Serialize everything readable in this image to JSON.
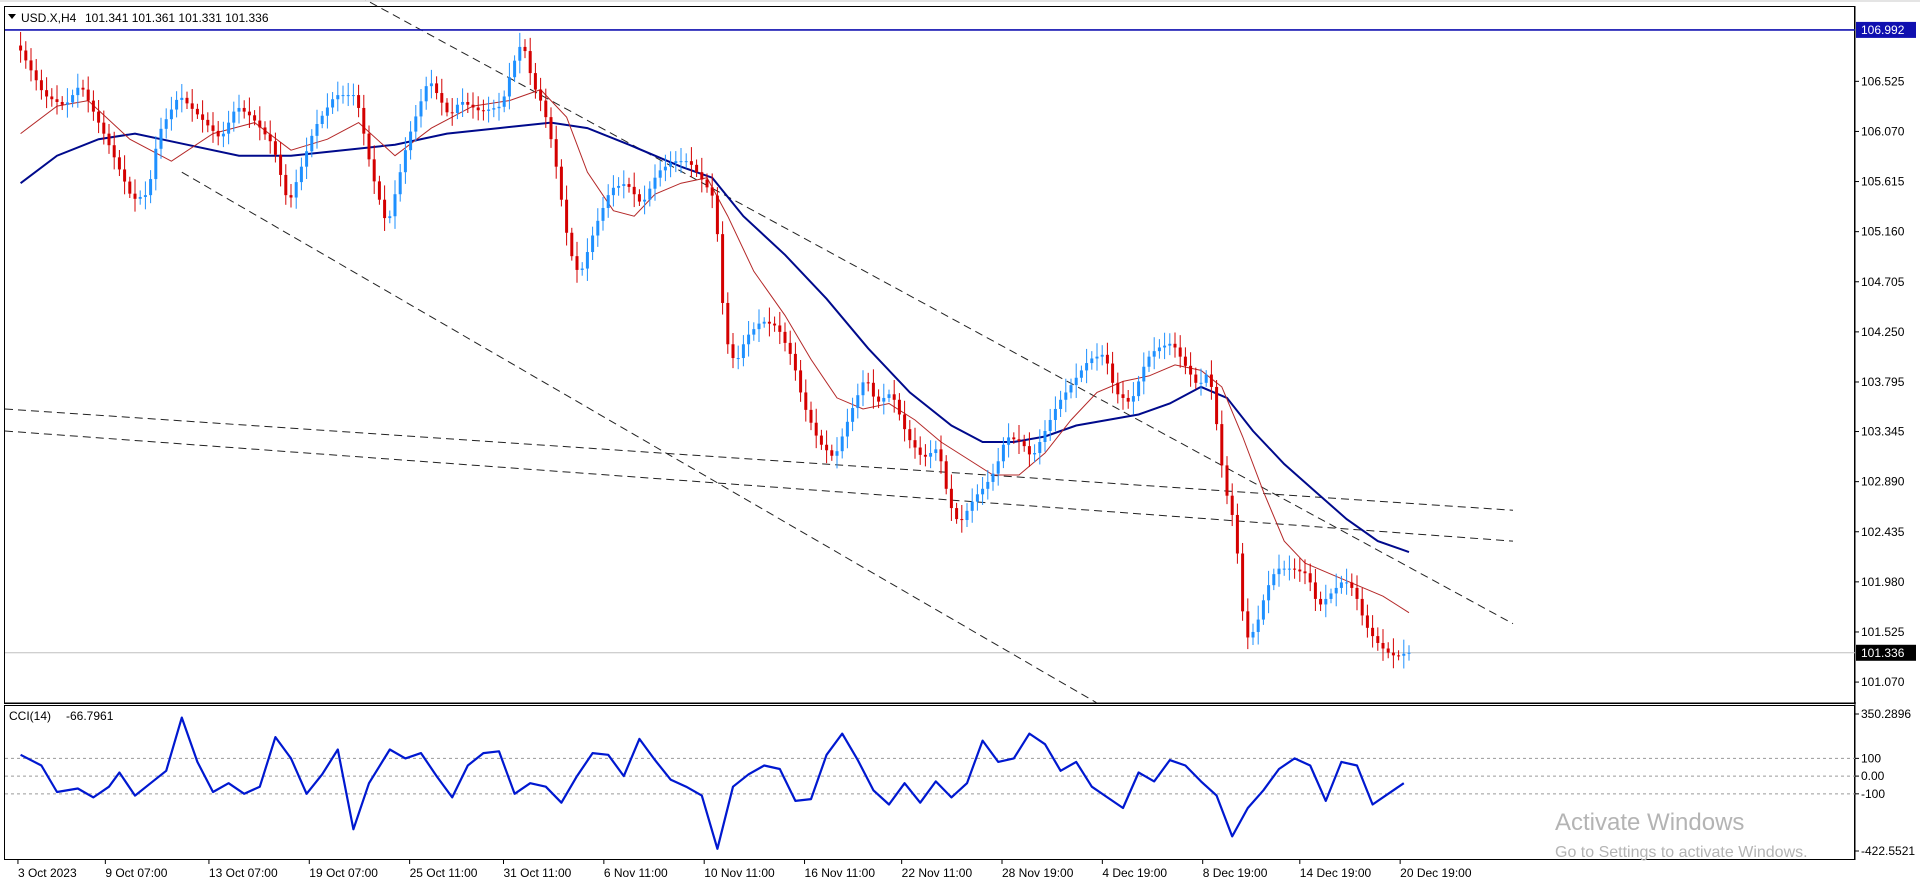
{
  "symbol_info": {
    "title": "USD.X,H4",
    "ohlc": "101.341 101.361 101.331 101.336"
  },
  "indicator": {
    "label": "CCI(14)",
    "value": "-66.7961",
    "levels": [
      "350.2896",
      "100",
      "0.00",
      "-100",
      "-422.5521"
    ]
  },
  "watermark": {
    "line1": "Activate Windows",
    "line2": "Go to Settings to activate Windows."
  },
  "price_axis": {
    "ticks": [
      "106.525",
      "106.070",
      "105.615",
      "105.160",
      "104.705",
      "104.250",
      "103.795",
      "103.345",
      "102.890",
      "102.435",
      "101.980",
      "101.525",
      "101.070"
    ],
    "current_price_label": "101.336",
    "resistance_label": "106.992"
  },
  "time_axis": {
    "labels": [
      "3 Oct 2023",
      "9 Oct 07:00",
      "13 Oct 07:00",
      "19 Oct 07:00",
      "25 Oct 11:00",
      "31 Oct 11:00",
      "6 Nov 11:00",
      "10 Nov 11:00",
      "16 Nov 11:00",
      "22 Nov 11:00",
      "28 Nov 19:00",
      "4 Dec 19:00",
      "8 Dec 19:00",
      "14 Dec 19:00",
      "20 Dec 19:00"
    ]
  },
  "colors": {
    "bull": "#1e90ff",
    "bear": "#d40000",
    "ma_slow": "#000a8c",
    "ma_fast": "#b42828",
    "cci": "#0018d0",
    "resistance": "#1010b0",
    "trendlines": "#222222"
  },
  "chart_data": {
    "type": "line",
    "ylim": [
      100.88,
      107.2
    ],
    "price_path": [
      [
        3,
        106.85
      ],
      [
        8,
        106.4
      ],
      [
        12,
        106.3
      ],
      [
        15,
        106.5
      ],
      [
        20,
        106.0
      ],
      [
        25,
        105.45
      ],
      [
        28,
        105.5
      ],
      [
        30,
        106.05
      ],
      [
        34,
        106.4
      ],
      [
        38,
        106.2
      ],
      [
        42,
        106.0
      ],
      [
        45,
        106.3
      ],
      [
        48,
        106.2
      ],
      [
        52,
        105.95
      ],
      [
        55,
        105.4
      ],
      [
        60,
        106.1
      ],
      [
        64,
        106.4
      ],
      [
        68,
        106.4
      ],
      [
        71,
        105.7
      ],
      [
        74,
        105.2
      ],
      [
        78,
        106.0
      ],
      [
        82,
        106.55
      ],
      [
        86,
        106.2
      ],
      [
        88,
        106.35
      ],
      [
        92,
        106.25
      ],
      [
        96,
        106.3
      ],
      [
        98,
        106.65
      ],
      [
        100,
        106.9
      ],
      [
        102,
        106.5
      ],
      [
        104,
        106.3
      ],
      [
        106,
        105.9
      ],
      [
        109,
        105.0
      ],
      [
        111,
        104.75
      ],
      [
        114,
        105.2
      ],
      [
        117,
        105.55
      ],
      [
        120,
        105.6
      ],
      [
        123,
        105.4
      ],
      [
        126,
        105.7
      ],
      [
        129,
        105.8
      ],
      [
        132,
        105.8
      ],
      [
        135,
        105.6
      ],
      [
        137,
        105.45
      ],
      [
        139,
        104.2
      ],
      [
        141,
        103.95
      ],
      [
        143,
        104.2
      ],
      [
        146,
        104.35
      ],
      [
        149,
        104.3
      ],
      [
        152,
        104.0
      ],
      [
        154,
        103.6
      ],
      [
        157,
        103.25
      ],
      [
        160,
        103.1
      ],
      [
        163,
        103.5
      ],
      [
        166,
        103.85
      ],
      [
        168,
        103.6
      ],
      [
        171,
        103.7
      ],
      [
        174,
        103.3
      ],
      [
        177,
        103.1
      ],
      [
        180,
        103.2
      ],
      [
        182,
        102.7
      ],
      [
        184,
        102.5
      ],
      [
        187,
        102.75
      ],
      [
        189,
        102.85
      ],
      [
        191,
        103.0
      ],
      [
        193,
        103.3
      ],
      [
        196,
        103.25
      ],
      [
        198,
        103.1
      ],
      [
        200,
        103.3
      ],
      [
        203,
        103.6
      ],
      [
        206,
        103.8
      ],
      [
        209,
        104.0
      ],
      [
        212,
        104.05
      ],
      [
        214,
        103.7
      ],
      [
        217,
        103.6
      ],
      [
        220,
        104.0
      ],
      [
        222,
        104.1
      ],
      [
        225,
        104.15
      ],
      [
        228,
        103.9
      ],
      [
        230,
        103.75
      ],
      [
        232,
        103.9
      ],
      [
        233,
        103.6
      ],
      [
        235,
        102.85
      ],
      [
        237,
        102.5
      ],
      [
        239,
        101.45
      ],
      [
        241,
        101.55
      ],
      [
        243,
        101.9
      ],
      [
        245,
        102.1
      ],
      [
        248,
        102.1
      ],
      [
        251,
        102.05
      ],
      [
        253,
        101.75
      ],
      [
        256,
        101.9
      ],
      [
        258,
        102.0
      ],
      [
        260,
        101.9
      ],
      [
        262,
        101.6
      ],
      [
        264,
        101.45
      ],
      [
        266,
        101.35
      ],
      [
        268,
        101.3
      ],
      [
        270,
        101.336
      ]
    ],
    "ma_fast_path": [
      [
        3,
        106.05
      ],
      [
        10,
        106.3
      ],
      [
        16,
        106.35
      ],
      [
        24,
        106.0
      ],
      [
        32,
        105.8
      ],
      [
        40,
        106.05
      ],
      [
        48,
        106.15
      ],
      [
        55,
        105.9
      ],
      [
        62,
        106.0
      ],
      [
        68,
        106.15
      ],
      [
        75,
        105.85
      ],
      [
        82,
        106.1
      ],
      [
        90,
        106.3
      ],
      [
        97,
        106.35
      ],
      [
        103,
        106.45
      ],
      [
        108,
        106.2
      ],
      [
        112,
        105.7
      ],
      [
        117,
        105.35
      ],
      [
        121,
        105.3
      ],
      [
        125,
        105.5
      ],
      [
        130,
        105.6
      ],
      [
        135,
        105.65
      ],
      [
        139,
        105.3
      ],
      [
        144,
        104.8
      ],
      [
        150,
        104.4
      ],
      [
        155,
        104.0
      ],
      [
        160,
        103.65
      ],
      [
        165,
        103.55
      ],
      [
        170,
        103.6
      ],
      [
        175,
        103.45
      ],
      [
        180,
        103.25
      ],
      [
        185,
        103.1
      ],
      [
        190,
        102.95
      ],
      [
        195,
        102.95
      ],
      [
        200,
        103.15
      ],
      [
        205,
        103.45
      ],
      [
        210,
        103.7
      ],
      [
        215,
        103.8
      ],
      [
        220,
        103.85
      ],
      [
        225,
        103.95
      ],
      [
        230,
        103.9
      ],
      [
        234,
        103.75
      ],
      [
        238,
        103.3
      ],
      [
        242,
        102.8
      ],
      [
        246,
        102.35
      ],
      [
        250,
        102.15
      ],
      [
        255,
        102.05
      ],
      [
        260,
        101.95
      ],
      [
        265,
        101.85
      ],
      [
        270,
        101.7
      ]
    ],
    "ma_slow_path": [
      [
        3,
        105.6
      ],
      [
        10,
        105.85
      ],
      [
        18,
        106.0
      ],
      [
        25,
        106.05
      ],
      [
        35,
        105.95
      ],
      [
        45,
        105.85
      ],
      [
        55,
        105.85
      ],
      [
        65,
        105.9
      ],
      [
        75,
        105.95
      ],
      [
        85,
        106.05
      ],
      [
        95,
        106.1
      ],
      [
        105,
        106.15
      ],
      [
        112,
        106.1
      ],
      [
        120,
        105.95
      ],
      [
        130,
        105.75
      ],
      [
        136,
        105.65
      ],
      [
        142,
        105.3
      ],
      [
        150,
        104.95
      ],
      [
        158,
        104.55
      ],
      [
        166,
        104.1
      ],
      [
        174,
        103.7
      ],
      [
        182,
        103.4
      ],
      [
        188,
        103.25
      ],
      [
        194,
        103.25
      ],
      [
        200,
        103.3
      ],
      [
        206,
        103.4
      ],
      [
        212,
        103.45
      ],
      [
        218,
        103.5
      ],
      [
        224,
        103.6
      ],
      [
        230,
        103.75
      ],
      [
        235,
        103.65
      ],
      [
        240,
        103.35
      ],
      [
        246,
        103.05
      ],
      [
        252,
        102.8
      ],
      [
        258,
        102.55
      ],
      [
        264,
        102.35
      ],
      [
        270,
        102.25
      ]
    ],
    "cci_ylim": [
      -422.5521,
      350.2896
    ],
    "cci_path": [
      [
        3,
        120
      ],
      [
        7,
        60
      ],
      [
        10,
        -90
      ],
      [
        14,
        -70
      ],
      [
        17,
        -120
      ],
      [
        20,
        -60
      ],
      [
        22,
        20
      ],
      [
        25,
        -110
      ],
      [
        28,
        -40
      ],
      [
        31,
        30
      ],
      [
        34,
        330
      ],
      [
        37,
        80
      ],
      [
        40,
        -90
      ],
      [
        43,
        -40
      ],
      [
        46,
        -100
      ],
      [
        49,
        -60
      ],
      [
        52,
        220
      ],
      [
        55,
        100
      ],
      [
        58,
        -100
      ],
      [
        61,
        10
      ],
      [
        64,
        150
      ],
      [
        67,
        -300
      ],
      [
        70,
        -40
      ],
      [
        74,
        150
      ],
      [
        77,
        100
      ],
      [
        80,
        130
      ],
      [
        83,
        0
      ],
      [
        86,
        -120
      ],
      [
        89,
        60
      ],
      [
        92,
        130
      ],
      [
        95,
        140
      ],
      [
        98,
        -100
      ],
      [
        101,
        -40
      ],
      [
        104,
        -60
      ],
      [
        107,
        -150
      ],
      [
        110,
        0
      ],
      [
        113,
        130
      ],
      [
        116,
        120
      ],
      [
        119,
        0
      ],
      [
        122,
        210
      ],
      [
        125,
        90
      ],
      [
        128,
        -20
      ],
      [
        131,
        -60
      ],
      [
        134,
        -110
      ],
      [
        137,
        -410
      ],
      [
        140,
        -60
      ],
      [
        143,
        10
      ],
      [
        146,
        60
      ],
      [
        149,
        40
      ],
      [
        152,
        -140
      ],
      [
        155,
        -130
      ],
      [
        158,
        120
      ],
      [
        161,
        240
      ],
      [
        164,
        90
      ],
      [
        167,
        -80
      ],
      [
        170,
        -160
      ],
      [
        173,
        -40
      ],
      [
        176,
        -150
      ],
      [
        179,
        -30
      ],
      [
        182,
        -120
      ],
      [
        185,
        -40
      ],
      [
        188,
        200
      ],
      [
        191,
        80
      ],
      [
        194,
        100
      ],
      [
        197,
        240
      ],
      [
        200,
        180
      ],
      [
        203,
        30
      ],
      [
        206,
        80
      ],
      [
        209,
        -60
      ],
      [
        212,
        -120
      ],
      [
        215,
        -180
      ],
      [
        218,
        20
      ],
      [
        221,
        -30
      ],
      [
        224,
        90
      ],
      [
        227,
        60
      ],
      [
        230,
        -30
      ],
      [
        233,
        -110
      ],
      [
        236,
        -340
      ],
      [
        239,
        -180
      ],
      [
        242,
        -80
      ],
      [
        245,
        40
      ],
      [
        248,
        100
      ],
      [
        251,
        60
      ],
      [
        254,
        -140
      ],
      [
        257,
        80
      ],
      [
        260,
        60
      ],
      [
        263,
        -160
      ],
      [
        266,
        -100
      ],
      [
        269,
        -40
      ]
    ],
    "resistance_level": 106.992,
    "current_price": 101.336
  }
}
